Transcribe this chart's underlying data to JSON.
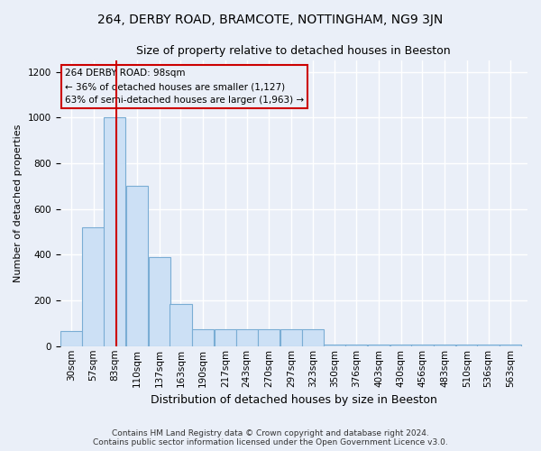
{
  "title1": "264, DERBY ROAD, BRAMCOTE, NOTTINGHAM, NG9 3JN",
  "title2": "Size of property relative to detached houses in Beeston",
  "xlabel": "Distribution of detached houses by size in Beeston",
  "ylabel": "Number of detached properties",
  "footnote1": "Contains HM Land Registry data © Crown copyright and database right 2024.",
  "footnote2": "Contains public sector information licensed under the Open Government Licence v3.0.",
  "annotation_line1": "264 DERBY ROAD: 98sqm",
  "annotation_line2": "← 36% of detached houses are smaller (1,127)",
  "annotation_line3": "63% of semi-detached houses are larger (1,963) →",
  "bar_color": "#cce0f5",
  "bar_edge_color": "#7aadd4",
  "vline_color": "#cc0000",
  "vline_x": 98,
  "categories": [
    "30sqm",
    "57sqm",
    "83sqm",
    "110sqm",
    "137sqm",
    "163sqm",
    "190sqm",
    "217sqm",
    "243sqm",
    "270sqm",
    "297sqm",
    "323sqm",
    "350sqm",
    "376sqm",
    "403sqm",
    "430sqm",
    "456sqm",
    "483sqm",
    "510sqm",
    "536sqm",
    "563sqm"
  ],
  "bin_left": [
    30,
    57,
    83,
    110,
    137,
    163,
    190,
    217,
    243,
    270,
    297,
    323,
    350,
    376,
    403,
    430,
    456,
    483,
    510,
    536,
    563
  ],
  "bin_width": 27,
  "values": [
    65,
    520,
    1000,
    700,
    390,
    185,
    75,
    75,
    75,
    75,
    75,
    75,
    5,
    5,
    5,
    5,
    5,
    5,
    5,
    5,
    5
  ],
  "ylim": [
    0,
    1250
  ],
  "yticks": [
    0,
    200,
    400,
    600,
    800,
    1000,
    1200
  ],
  "bg_color": "#eaeff8",
  "grid_color": "#ffffff",
  "title1_fontsize": 10,
  "title2_fontsize": 9,
  "ylabel_fontsize": 8,
  "xlabel_fontsize": 9,
  "tick_fontsize": 7.5,
  "footnote_fontsize": 6.5
}
